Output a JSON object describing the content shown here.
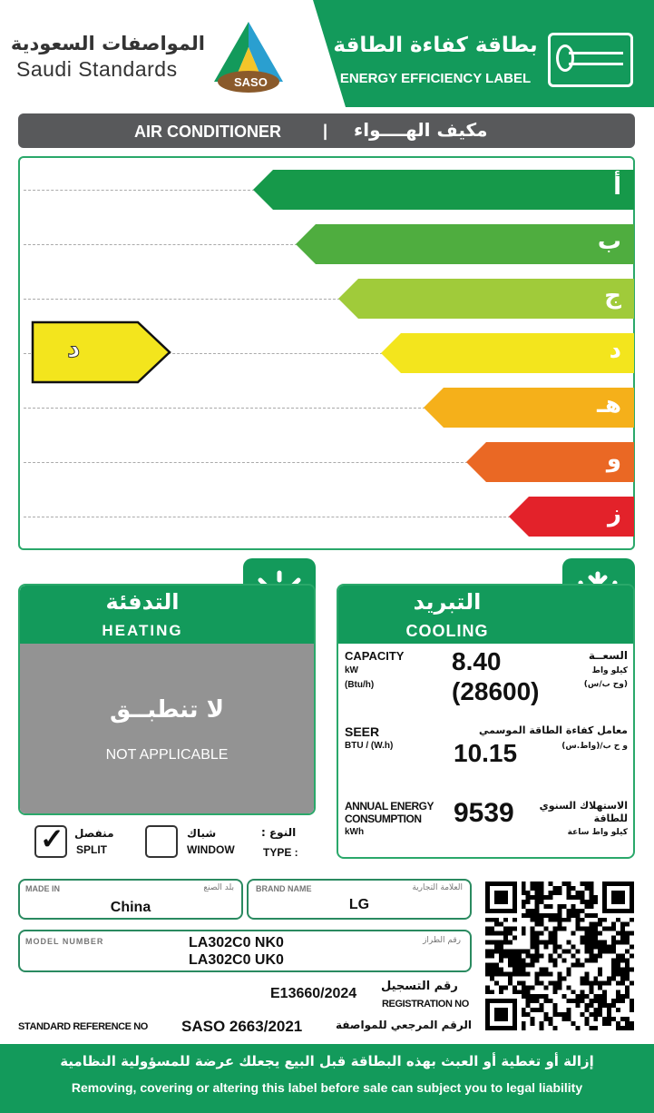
{
  "header": {
    "saudi_standards_ar": "المواصفات السعودية",
    "saudi_standards_en": "Saudi Standards",
    "logo_text": "SASO",
    "title_ar": "بطاقة كفاءة الطاقة",
    "title_en": "ENERGY EFFICIENCY LABEL",
    "ac_icon": "air-conditioner-icon"
  },
  "product_bar": {
    "en": "AIR CONDITIONER",
    "sep": "|",
    "ar": "مكيف الهــــواء"
  },
  "scale": {
    "classes": [
      {
        "label": "أ",
        "color": "#16994a"
      },
      {
        "label": "ب",
        "color": "#4fad3f"
      },
      {
        "label": "ج",
        "color": "#a0cb3a"
      },
      {
        "label": "د",
        "color": "#f3e51d"
      },
      {
        "label": "هـ",
        "color": "#f5b01a"
      },
      {
        "label": "و",
        "color": "#ea6824"
      },
      {
        "label": "ز",
        "color": "#e3222a"
      }
    ],
    "rating": "د",
    "rating_color": "#f3e51d"
  },
  "heating": {
    "title_ar": "التدفئة",
    "title_en": "HEATING",
    "na_ar": "لا تنطبــق",
    "na_en": "NOT APPLICABLE",
    "icon": "sun-icon"
  },
  "cooling": {
    "title_ar": "التبريد",
    "title_en": "COOLING",
    "icon": "snowflake-icon",
    "capacity": {
      "en": "CAPACITY",
      "unit1": "kW",
      "unit2": "(Btu/h)",
      "value_kw": "8.40",
      "value_btu": "(28600)",
      "ar": "السعــة",
      "ar_unit1": "كيلو واط",
      "ar_unit2": "(وح ب/س)"
    },
    "seer": {
      "en": "SEER",
      "unit": "BTU / (W.h)",
      "value": "10.15",
      "ar": "معامل كفاءة الطاقة الموسمي",
      "ar_unit": "و ح ب/(واط.س)"
    },
    "annual": {
      "en1": "ANNUAL ENERGY",
      "en2": "CONSUMPTION",
      "unit": "kWh",
      "value": "9539",
      "ar1": "الاستهلاك السنوي",
      "ar2": "للطاقة",
      "ar_unit": "كيلو واط ساعة"
    }
  },
  "type": {
    "split_ar": "منفصل",
    "split_en": "SPLIT",
    "split_checked": true,
    "window_ar": "شباك",
    "window_en": "WINDOW",
    "window_checked": false,
    "label_ar": "النوع :",
    "label_en": "TYPE :"
  },
  "info": {
    "made_in_label": "MADE IN",
    "made_in_ar": "بلد الصنع",
    "made_in": "China",
    "brand_label": "BRAND  NAME",
    "brand_ar": "العلامة التجارية",
    "brand": "LG",
    "model_label": "MODEL NUMBER",
    "model_ar": "رقم الطراز",
    "model_1": "LA302C0 NK0",
    "model_2": "LA302C0 UK0",
    "reg_ar": "رقم التسجيل",
    "reg_en": "REGISTRATION NO",
    "reg": "E13660/2024",
    "std_en": "STANDARD REFERENCE NO",
    "std": "SASO 2663/2021",
    "std_ar": "الرقم المرجعي للمواصفة"
  },
  "footer": {
    "ar": "إزالة أو تغطية أو العبث بهذه البطاقة قبل البيع يجعلك عرضة للمسؤولية النظامية",
    "en": "Removing, covering or altering this label before sale can subject you to legal liability"
  }
}
